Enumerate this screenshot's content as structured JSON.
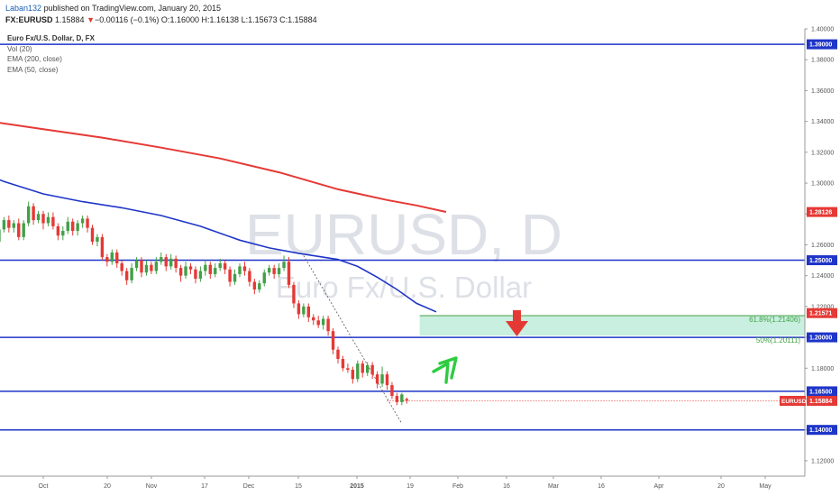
{
  "header": {
    "author": "Laban132",
    "published": "published on TradingView.com, January 20, 2015",
    "symbol": "FX:EURUSD",
    "last": "1.15884",
    "change": "−0.00116 (−0.1%)",
    "open_label": "O:",
    "open": "1.16000",
    "high_label": "H:",
    "high": "1.16138",
    "low_label": "L:",
    "low": "1.15673",
    "close_label": "C:",
    "close": "1.15884"
  },
  "legend": {
    "title": "Euro Fx/U.S. Dollar, D, FX",
    "vol": "Vol (20)",
    "ema200": "EMA (200, close)",
    "ema50": "EMA (50, close)"
  },
  "watermark": {
    "ticker": "EURUSD, D",
    "name": "Euro Fx/U.S. Dollar"
  },
  "chart_data": {
    "type": "candlestick",
    "symbol": "EURUSD",
    "timeframe": "D",
    "ylim": [
      1.11,
      1.4
    ],
    "y_ticks": [
      "1.40000",
      "1.38000",
      "1.36000",
      "1.34000",
      "1.32000",
      "1.30000",
      "1.28000",
      "1.26000",
      "1.24000",
      "1.22000",
      "1.20000",
      "1.18000",
      "1.16000",
      "1.14000",
      "1.12000"
    ],
    "x_ticks": [
      "Oct",
      "20",
      "Nov",
      "17",
      "Dec",
      "15",
      "2015",
      "19",
      "Feb",
      "16",
      "Mar",
      "16",
      "Apr",
      "20",
      "May"
    ],
    "x_tick_days": [
      0,
      19,
      31,
      47,
      61,
      75,
      92,
      110,
      123,
      137,
      151,
      167,
      182,
      202,
      212
    ],
    "horizontal_lines": [
      {
        "price": 1.39,
        "label": "1.39000"
      },
      {
        "price": 1.25,
        "label": "1.25000"
      },
      {
        "price": 1.2,
        "label": "1.20000"
      },
      {
        "price": 1.165,
        "label": "1.16500"
      },
      {
        "price": 1.14,
        "label": "1.14000"
      }
    ],
    "colors": {
      "up": "#43a047",
      "down": "#e53935",
      "ema200": "#e53935",
      "ema50": "#1e35c8",
      "level": "#1e35c8",
      "zone": "#c8efdf"
    },
    "zone": {
      "from": 1.20111,
      "to": 1.21406,
      "start_day": 77
    },
    "fib": [
      {
        "label": "61.8%(1.21406)",
        "price": 1.21406
      },
      {
        "label": "50%(1.20111)",
        "price": 1.20111
      }
    ],
    "price_tags": [
      {
        "label": "1.28126",
        "price": 1.28126,
        "color": "#e53935"
      },
      {
        "label": "1.21571",
        "price": 1.21571,
        "color": "#e53935"
      },
      {
        "symbol": "EURUSD",
        "label": "1.15884",
        "price": 1.15884,
        "color": "#e53935"
      }
    ],
    "ema200": [
      [
        -24,
        1.346
      ],
      [
        -10,
        1.339
      ],
      [
        5,
        1.33
      ],
      [
        20,
        1.321
      ],
      [
        35,
        1.312
      ],
      [
        50,
        1.303
      ],
      [
        60,
        1.297
      ],
      [
        70,
        1.29
      ],
      [
        78,
        1.284
      ],
      [
        85,
        1.279
      ],
      [
        90,
        1.275
      ],
      [
        92,
        1.272
      ],
      [
        96,
        1.269
      ],
      [
        99,
        1.266
      ],
      [
        103,
        1.262
      ],
      [
        106,
        1.258
      ],
      [
        109,
        1.255
      ],
      [
        112,
        1.2525
      ],
      [
        115,
        1.25
      ],
      [
        120,
        1.247
      ],
      [
        125,
        1.244
      ],
      [
        130,
        1.242
      ],
      [
        135,
        1.24
      ],
      [
        140,
        1.2375
      ],
      [
        145,
        1.2355
      ],
      [
        150,
        1.234
      ],
      [
        155,
        1.2325
      ],
      [
        158,
        1.232
      ],
      [
        161,
        1.2315
      ],
      [
        163,
        1.2314
      ],
      [
        165,
        1.2313
      ],
      [
        167,
        1.2312
      ],
      [
        169,
        1.2311
      ],
      [
        171,
        1.231
      ],
      [
        173,
        1.2309
      ],
      [
        175,
        1.2305
      ],
      [
        177,
        1.23
      ],
      [
        179,
        1.2295
      ],
      [
        181,
        1.229
      ],
      [
        183,
        1.2285
      ],
      [
        185,
        1.2282
      ],
      [
        187,
        1.2281
      ],
      [
        189,
        1.281
      ]
    ],
    "ema50": [
      [
        -24,
        1.322
      ],
      [
        -14,
        1.307
      ],
      [
        -4,
        1.292
      ],
      [
        6,
        1.284
      ],
      [
        16,
        1.279
      ],
      [
        26,
        1.274
      ],
      [
        36,
        1.268
      ],
      [
        46,
        1.262
      ],
      [
        56,
        1.256
      ],
      [
        66,
        1.253
      ],
      [
        72,
        1.2515
      ],
      [
        78,
        1.2495
      ],
      [
        84,
        1.244
      ],
      [
        90,
        1.235
      ],
      [
        96,
        1.224
      ],
      [
        100,
        1.216
      ]
    ],
    "dotted_trend": [
      [
        79,
        1.253
      ],
      [
        98,
        1.144
      ]
    ],
    "candles": [
      [
        -24,
        1.289,
        1.284,
        1.292,
        1.281
      ],
      [
        -23,
        1.284,
        1.282,
        1.286,
        1.279
      ],
      [
        -22,
        1.282,
        1.285,
        1.287,
        1.279
      ],
      [
        -21,
        1.285,
        1.278,
        1.287,
        1.276
      ],
      [
        -20,
        1.278,
        1.271,
        1.28,
        1.269
      ],
      [
        -19,
        1.271,
        1.268,
        1.273,
        1.265
      ],
      [
        -18,
        1.268,
        1.264,
        1.27,
        1.262
      ],
      [
        -17,
        1.264,
        1.266,
        1.268,
        1.261
      ],
      [
        -16,
        1.266,
        1.26,
        1.268,
        1.258
      ],
      [
        -15,
        1.26,
        1.264,
        1.266,
        1.258
      ],
      [
        -14,
        1.264,
        1.268,
        1.271,
        1.262
      ],
      [
        -13,
        1.268,
        1.262,
        1.27,
        1.26
      ],
      [
        -12,
        1.262,
        1.252,
        1.264,
        1.25
      ],
      [
        -11,
        1.252,
        1.267,
        1.269,
        1.25
      ],
      [
        -10,
        1.267,
        1.262,
        1.269,
        1.259
      ],
      [
        -9,
        1.262,
        1.27,
        1.272,
        1.26
      ],
      [
        -8,
        1.27,
        1.276,
        1.278,
        1.268
      ],
      [
        -7,
        1.276,
        1.271,
        1.279,
        1.268
      ],
      [
        -6,
        1.271,
        1.274,
        1.276,
        1.268
      ],
      [
        -5,
        1.274,
        1.265,
        1.277,
        1.263
      ],
      [
        -4,
        1.265,
        1.274,
        1.276,
        1.263
      ],
      [
        -3,
        1.274,
        1.285,
        1.288,
        1.272
      ],
      [
        -2,
        1.285,
        1.276,
        1.287,
        1.273
      ],
      [
        -1,
        1.276,
        1.28,
        1.282,
        1.274
      ],
      [
        0,
        1.28,
        1.274,
        1.282,
        1.27
      ],
      [
        1,
        1.274,
        1.278,
        1.281,
        1.272
      ],
      [
        2,
        1.278,
        1.272,
        1.281,
        1.27
      ],
      [
        3,
        1.272,
        1.266,
        1.274,
        1.263
      ],
      [
        4,
        1.266,
        1.269,
        1.272,
        1.263
      ],
      [
        5,
        1.269,
        1.275,
        1.278,
        1.267
      ],
      [
        6,
        1.275,
        1.269,
        1.277,
        1.266
      ],
      [
        7,
        1.269,
        1.274,
        1.276,
        1.266
      ],
      [
        8,
        1.274,
        1.277,
        1.279,
        1.271
      ],
      [
        9,
        1.277,
        1.271,
        1.279,
        1.268
      ],
      [
        10,
        1.271,
        1.262,
        1.273,
        1.26
      ],
      [
        11,
        1.262,
        1.265,
        1.267,
        1.259
      ],
      [
        12,
        1.265,
        1.252,
        1.267,
        1.25
      ],
      [
        13,
        1.252,
        1.249,
        1.254,
        1.246
      ],
      [
        14,
        1.249,
        1.255,
        1.257,
        1.247
      ],
      [
        15,
        1.255,
        1.248,
        1.257,
        1.245
      ],
      [
        16,
        1.248,
        1.243,
        1.25,
        1.24
      ],
      [
        17,
        1.243,
        1.237,
        1.245,
        1.234
      ],
      [
        18,
        1.237,
        1.245,
        1.248,
        1.235
      ],
      [
        19,
        1.245,
        1.25,
        1.252,
        1.243
      ],
      [
        20,
        1.25,
        1.242,
        1.252,
        1.239
      ],
      [
        21,
        1.242,
        1.247,
        1.25,
        1.24
      ],
      [
        22,
        1.247,
        1.243,
        1.249,
        1.241
      ],
      [
        23,
        1.243,
        1.249,
        1.252,
        1.241
      ],
      [
        24,
        1.249,
        1.252,
        1.255,
        1.247
      ],
      [
        25,
        1.252,
        1.246,
        1.254,
        1.243
      ],
      [
        26,
        1.246,
        1.251,
        1.254,
        1.244
      ],
      [
        27,
        1.251,
        1.245,
        1.253,
        1.242
      ],
      [
        28,
        1.245,
        1.24,
        1.247,
        1.236
      ],
      [
        29,
        1.24,
        1.246,
        1.249,
        1.238
      ],
      [
        30,
        1.246,
        1.244,
        1.248,
        1.241
      ],
      [
        31,
        1.244,
        1.238,
        1.246,
        1.235
      ],
      [
        32,
        1.238,
        1.243,
        1.246,
        1.236
      ],
      [
        33,
        1.243,
        1.247,
        1.25,
        1.24
      ],
      [
        34,
        1.247,
        1.241,
        1.249,
        1.238
      ],
      [
        35,
        1.241,
        1.245,
        1.248,
        1.239
      ],
      [
        36,
        1.245,
        1.248,
        1.251,
        1.243
      ],
      [
        37,
        1.248,
        1.244,
        1.25,
        1.241
      ],
      [
        38,
        1.244,
        1.236,
        1.246,
        1.233
      ],
      [
        39,
        1.236,
        1.241,
        1.244,
        1.234
      ],
      [
        40,
        1.241,
        1.246,
        1.248,
        1.239
      ],
      [
        41,
        1.246,
        1.243,
        1.249,
        1.24
      ],
      [
        42,
        1.243,
        1.236,
        1.245,
        1.233
      ],
      [
        43,
        1.236,
        1.231,
        1.238,
        1.228
      ],
      [
        44,
        1.231,
        1.235,
        1.237,
        1.229
      ],
      [
        45,
        1.235,
        1.242,
        1.244,
        1.233
      ],
      [
        46,
        1.242,
        1.245,
        1.247,
        1.24
      ],
      [
        47,
        1.245,
        1.241,
        1.247,
        1.238
      ],
      [
        48,
        1.241,
        1.245,
        1.248,
        1.239
      ],
      [
        49,
        1.245,
        1.249,
        1.253,
        1.243
      ],
      [
        50,
        1.249,
        1.234,
        1.252,
        1.232
      ],
      [
        51,
        1.234,
        1.222,
        1.236,
        1.219
      ],
      [
        52,
        1.222,
        1.215,
        1.224,
        1.212
      ],
      [
        53,
        1.215,
        1.22,
        1.222,
        1.213
      ],
      [
        54,
        1.22,
        1.213,
        1.222,
        1.21
      ],
      [
        55,
        1.213,
        1.211,
        1.215,
        1.208
      ],
      [
        56,
        1.211,
        1.208,
        1.214,
        1.206
      ],
      [
        57,
        1.208,
        1.212,
        1.214,
        1.205
      ],
      [
        58,
        1.212,
        1.204,
        1.214,
        1.201
      ],
      [
        59,
        1.204,
        1.192,
        1.206,
        1.189
      ],
      [
        60,
        1.192,
        1.186,
        1.194,
        1.183
      ],
      [
        61,
        1.186,
        1.18,
        1.188,
        1.178
      ],
      [
        62,
        1.18,
        1.179,
        1.183,
        1.177
      ],
      [
        63,
        1.179,
        1.173,
        1.181,
        1.17
      ],
      [
        64,
        1.173,
        1.183,
        1.185,
        1.171
      ],
      [
        65,
        1.183,
        1.177,
        1.185,
        1.174
      ],
      [
        66,
        1.177,
        1.182,
        1.184,
        1.175
      ],
      [
        67,
        1.182,
        1.176,
        1.184,
        1.173
      ],
      [
        68,
        1.176,
        1.17,
        1.178,
        1.167
      ],
      [
        69,
        1.17,
        1.176,
        1.181,
        1.168
      ],
      [
        70,
        1.176,
        1.169,
        1.178,
        1.166
      ],
      [
        71,
        1.169,
        1.162,
        1.171,
        1.16
      ],
      [
        72,
        1.162,
        1.158,
        1.164,
        1.156
      ],
      [
        73,
        1.158,
        1.163,
        1.164,
        1.156
      ],
      [
        74,
        1.16,
        1.159,
        1.161,
        1.157
      ]
    ]
  }
}
